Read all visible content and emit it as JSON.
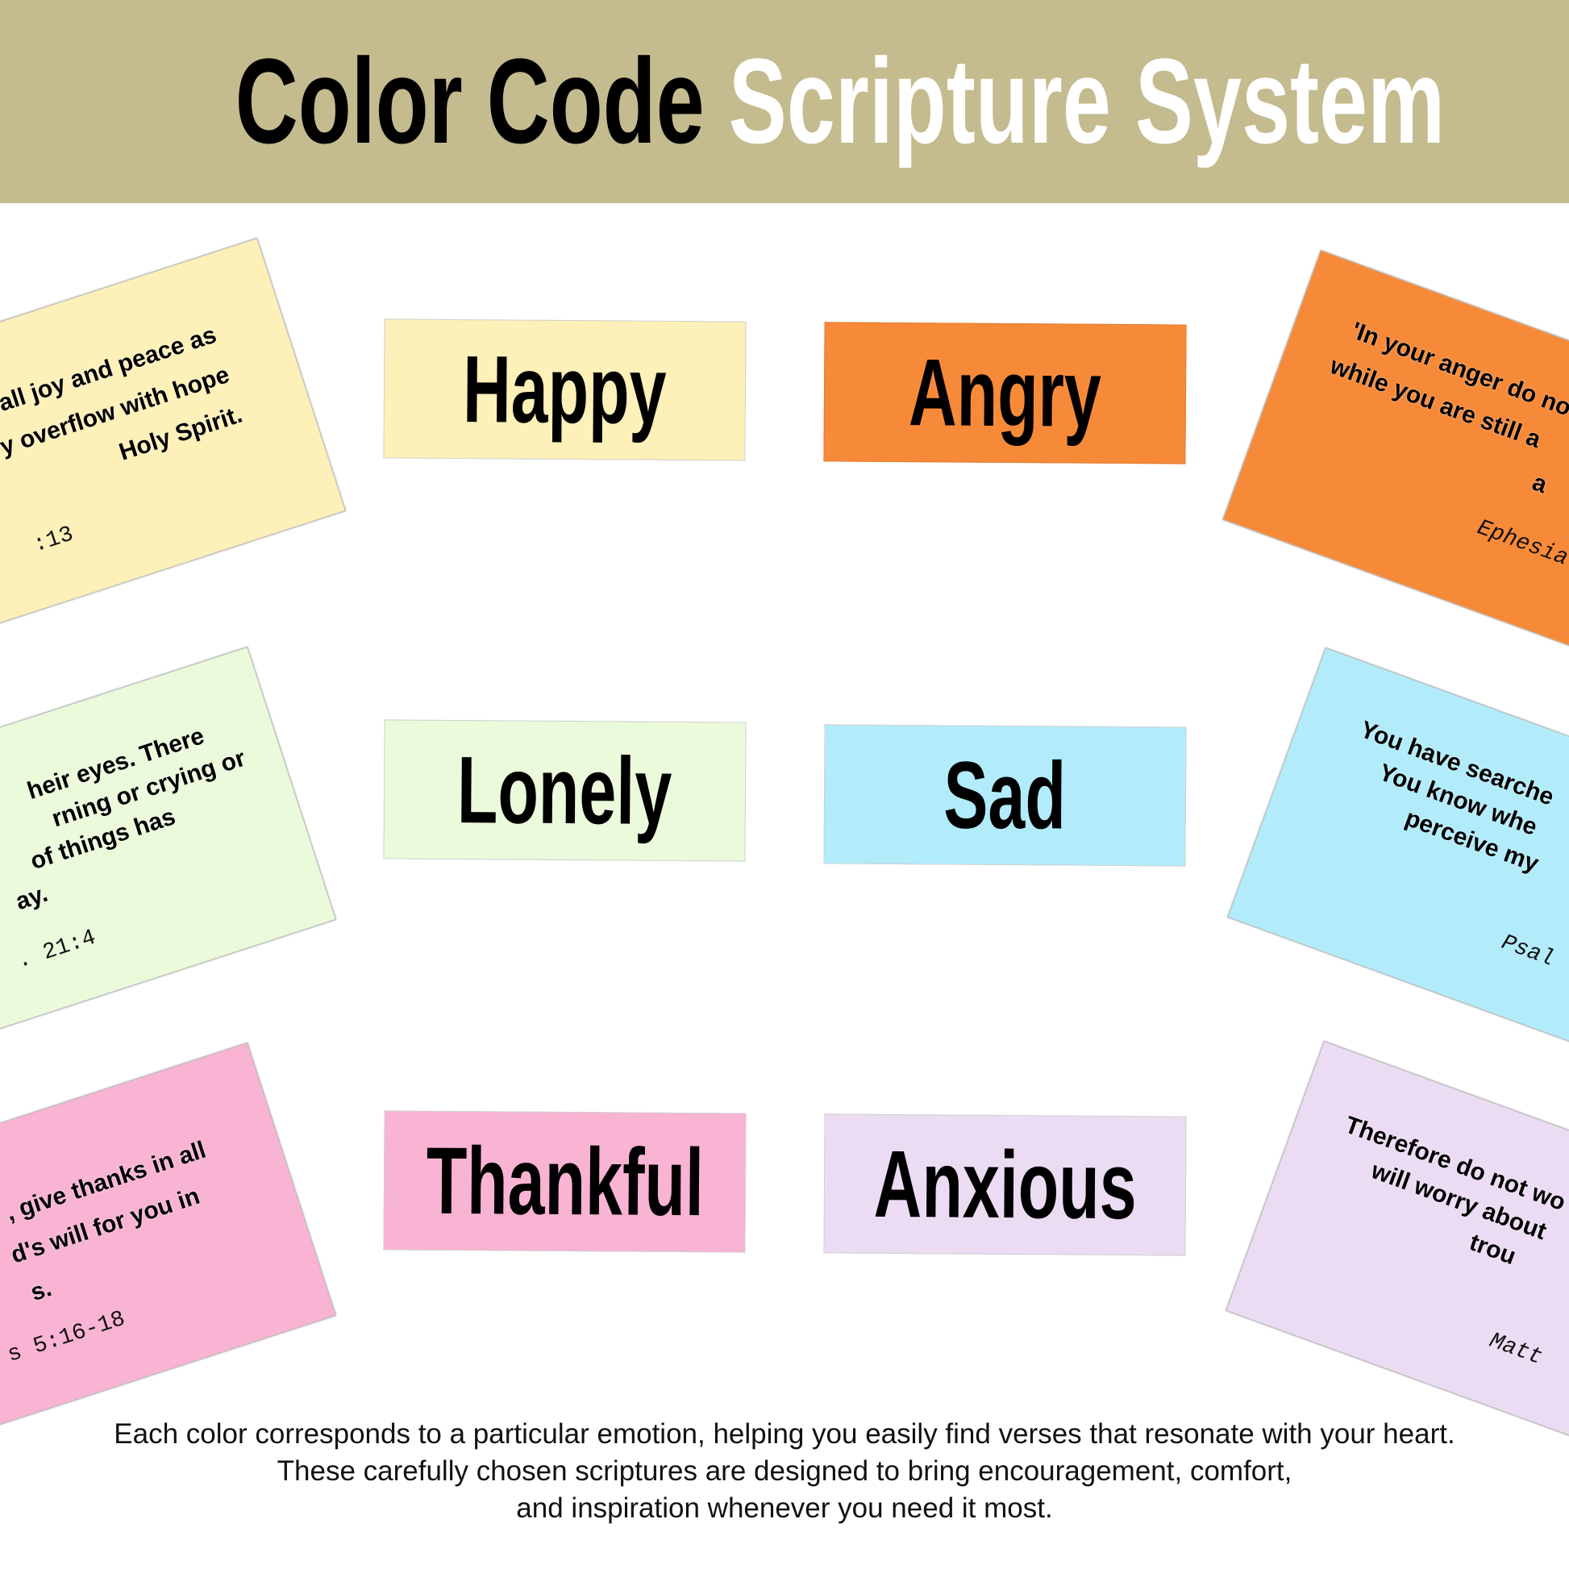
{
  "header": {
    "title_part1": "Color Code",
    "title_part2": "Scripture System",
    "background": "#c4bb8e"
  },
  "labels": [
    {
      "text": "Happy",
      "color": "#fdf0b8"
    },
    {
      "text": "Angry",
      "color": "#f78a38"
    },
    {
      "text": "Lonely",
      "color": "#eafadb"
    },
    {
      "text": "Sad",
      "color": "#b2ecfb"
    },
    {
      "text": "Thankful",
      "color": "#f9b3d3"
    },
    {
      "text": "Anxious",
      "color": "#ebdcf3"
    }
  ],
  "cards": {
    "happy": {
      "lines": [
        "all joy and peace as",
        "y overflow with hope",
        "Holy Spirit."
      ],
      "ref": ":13",
      "color": "#fdf0b8"
    },
    "lonely": {
      "lines": [
        "heir eyes. There",
        "rning or crying or",
        "of things has",
        "ay."
      ],
      "ref": ". 21:4",
      "color": "#eafadb"
    },
    "thankful": {
      "lines": [
        ", give thanks in all",
        "d's will for you in",
        "s."
      ],
      "ref": "s 5:16-18",
      "color": "#f9b3d3"
    },
    "angry": {
      "lines": [
        "'In your anger do no",
        "while you are still a",
        "a"
      ],
      "ref": "Ephesia",
      "color": "#f78a38"
    },
    "sad": {
      "lines": [
        "You have searche",
        "You know whe",
        "perceive my"
      ],
      "ref": "Psal",
      "color": "#b2ecfb"
    },
    "anxious": {
      "lines": [
        "Therefore do not wo",
        "will worry about",
        "trou"
      ],
      "ref": "Matt",
      "color": "#ebdcf3"
    }
  },
  "footer": {
    "lines": [
      "Each color corresponds to a particular emotion, helping you easily find verses that resonate with your heart.",
      "These carefully chosen scriptures are designed to bring encouragement, comfort,",
      "and inspiration whenever you need it most."
    ]
  }
}
